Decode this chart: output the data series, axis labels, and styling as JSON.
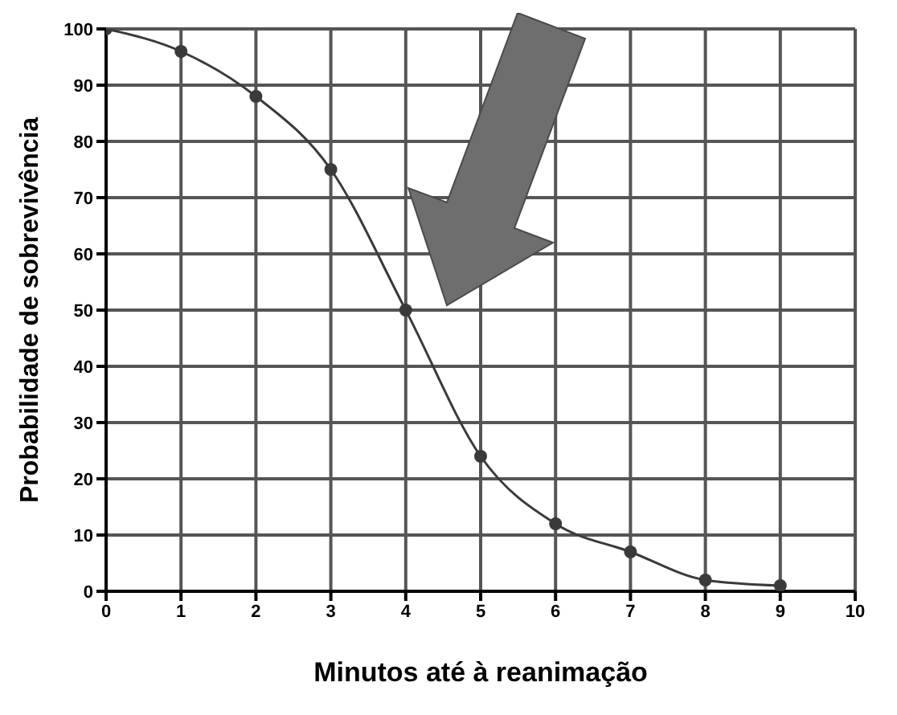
{
  "chart_data": {
    "type": "line",
    "xlabel": "Minutos até à reanimação",
    "ylabel": "Probabilidade de sobrevivência",
    "x": [
      0,
      1,
      2,
      3,
      4,
      5,
      6,
      7,
      8,
      9
    ],
    "series": [
      {
        "color": "#3a3a3a",
        "values": [
          100,
          96,
          88,
          75,
          50,
          24,
          12,
          7,
          2,
          1
        ]
      }
    ],
    "xlim": [
      0,
      10
    ],
    "xticks": [
      0,
      1,
      2,
      3,
      4,
      5,
      6,
      7,
      8,
      9,
      10
    ],
    "ylim": [
      0,
      100
    ],
    "yticks": [
      0,
      10,
      20,
      30,
      40,
      50,
      60,
      70,
      80,
      90,
      100
    ],
    "grid": true,
    "marker": "circle",
    "legend": false
  }
}
